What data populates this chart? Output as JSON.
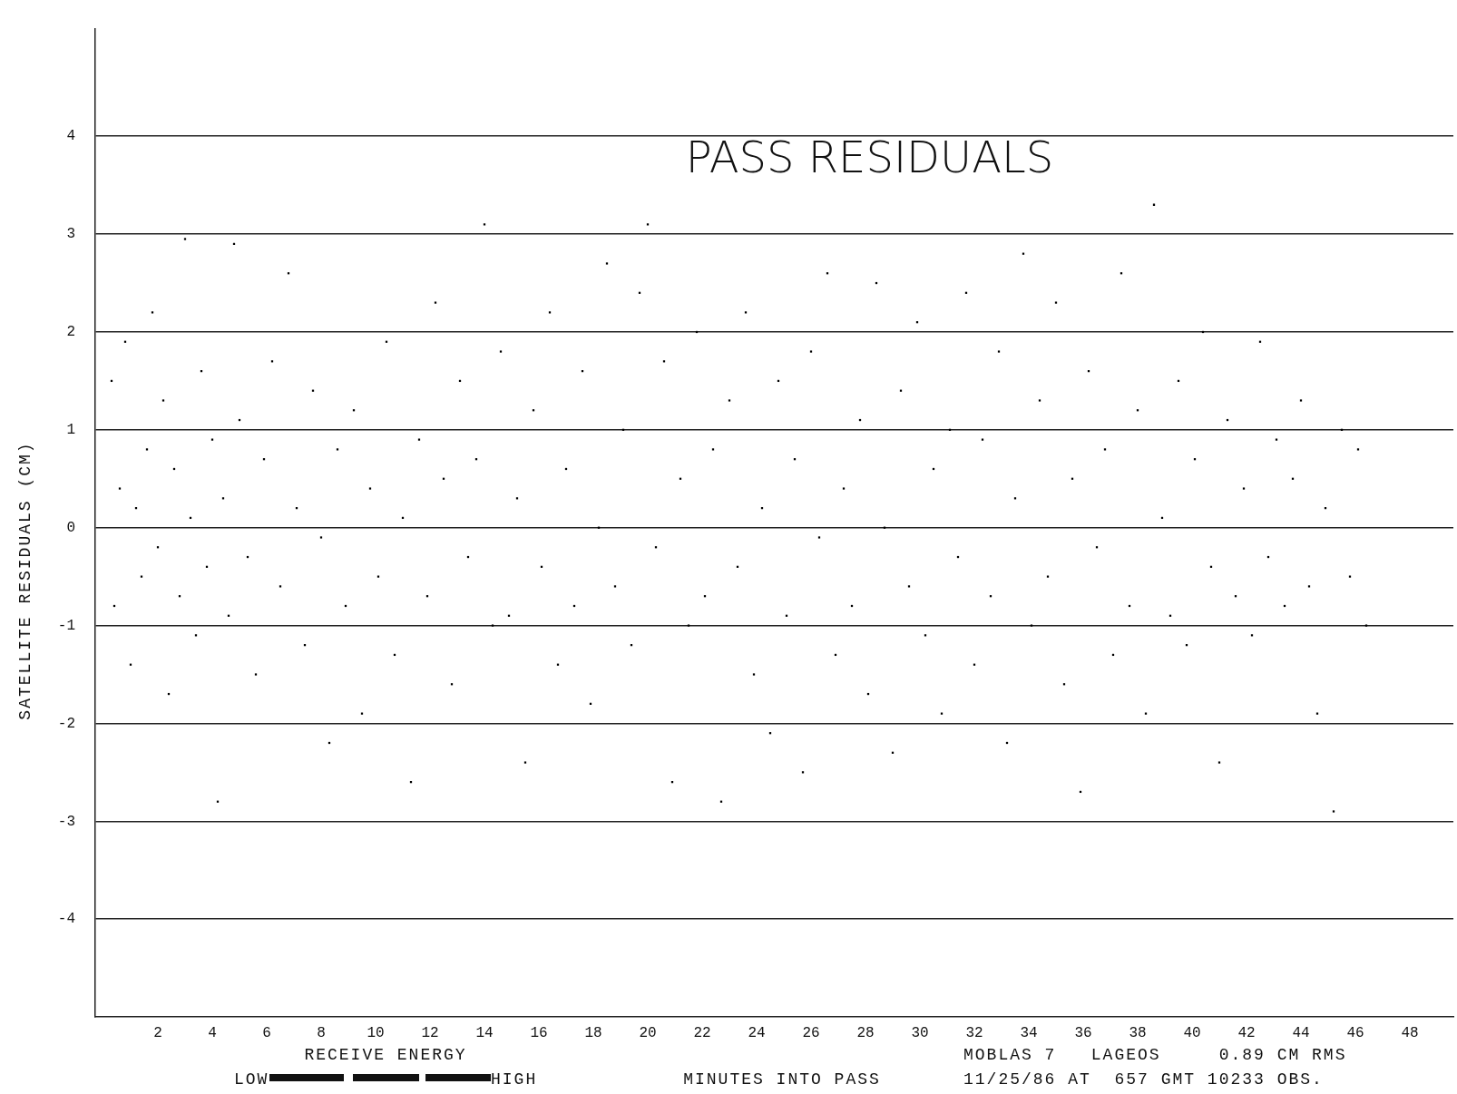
{
  "chart_data": {
    "type": "scatter",
    "title": "PASS RESIDUALS",
    "xlabel": "MINUTES INTO PASS",
    "ylabel": "SATELLITE RESIDUALS (CM)",
    "annotations": [
      "RECEIVE ENERGY",
      "LOW",
      "HIGH",
      "MOBLAS 7   LAGEOS     0.89 CM RMS",
      "11/25/86 AT  657 GMT 10233 OBS."
    ],
    "xlim": [
      -0.3,
      49.6
    ],
    "ylim": [
      -5,
      5.1
    ],
    "xticks": [
      2,
      4,
      6,
      8,
      10,
      12,
      14,
      16,
      18,
      20,
      22,
      24,
      26,
      28,
      30,
      32,
      34,
      36,
      38,
      40,
      42,
      44,
      46,
      48
    ],
    "yticks": [
      -4,
      -3,
      -2,
      -1,
      0,
      1,
      2,
      3,
      4
    ],
    "grid": "y",
    "marker": "square",
    "color": "#000000",
    "x": [
      0.3,
      0.4,
      0.6,
      0.8,
      1.0,
      1.2,
      1.4,
      1.6,
      1.8,
      2.0,
      2.2,
      2.4,
      2.6,
      2.8,
      3.0,
      3.2,
      3.4,
      3.6,
      3.8,
      4.0,
      4.2,
      4.4,
      4.6,
      4.8,
      5.0,
      5.3,
      5.6,
      5.9,
      6.2,
      6.5,
      6.8,
      7.1,
      7.4,
      7.7,
      8.0,
      8.3,
      8.6,
      8.9,
      9.2,
      9.5,
      9.8,
      10.1,
      10.4,
      10.7,
      11.0,
      11.3,
      11.6,
      11.9,
      12.2,
      12.5,
      12.8,
      13.1,
      13.4,
      13.7,
      14.0,
      14.3,
      14.6,
      14.9,
      15.2,
      15.5,
      15.8,
      16.1,
      16.4,
      16.7,
      17.0,
      17.3,
      17.6,
      17.9,
      18.2,
      18.5,
      18.8,
      19.1,
      19.4,
      19.7,
      20.0,
      20.3,
      20.6,
      20.9,
      21.2,
      21.5,
      21.8,
      22.1,
      22.4,
      22.7,
      23.0,
      23.3,
      23.6,
      23.9,
      24.2,
      24.5,
      24.8,
      25.1,
      25.4,
      25.7,
      26.0,
      26.3,
      26.6,
      26.9,
      27.2,
      27.5,
      27.8,
      28.1,
      28.4,
      28.7,
      29.0,
      29.3,
      29.6,
      29.9,
      30.2,
      30.5,
      30.8,
      31.1,
      31.4,
      31.7,
      32.0,
      32.3,
      32.6,
      32.9,
      33.2,
      33.5,
      33.8,
      34.1,
      34.4,
      34.7,
      35.0,
      35.3,
      35.6,
      35.9,
      36.2,
      36.5,
      36.8,
      37.1,
      37.4,
      37.7,
      38.0,
      38.3,
      38.6,
      38.9,
      39.2,
      39.5,
      39.8,
      40.1,
      40.4,
      40.7,
      41.0,
      41.3,
      41.6,
      41.9,
      42.2,
      42.5,
      42.8,
      43.1,
      43.4,
      43.7,
      44.0,
      44.3,
      44.6,
      44.9,
      45.2,
      45.5,
      45.8,
      46.1,
      46.4
    ],
    "values": [
      1.5,
      -0.8,
      0.4,
      1.9,
      -1.4,
      0.2,
      -0.5,
      0.8,
      2.2,
      -0.2,
      1.3,
      -1.7,
      0.6,
      -0.7,
      2.95,
      0.1,
      -1.1,
      1.6,
      -0.4,
      0.9,
      -2.8,
      0.3,
      -0.9,
      2.9,
      1.1,
      -0.3,
      -1.5,
      0.7,
      1.7,
      -0.6,
      2.6,
      0.2,
      -1.2,
      1.4,
      -0.1,
      -2.2,
      0.8,
      -0.8,
      1.2,
      -1.9,
      0.4,
      -0.5,
      1.9,
      -1.3,
      0.1,
      -2.6,
      0.9,
      -0.7,
      2.3,
      0.5,
      -1.6,
      1.5,
      -0.3,
      0.7,
      3.1,
      -1.0,
      1.8,
      -0.9,
      0.3,
      -2.4,
      1.2,
      -0.4,
      2.2,
      -1.4,
      0.6,
      -0.8,
      1.6,
      -1.8,
      0.0,
      2.7,
      -0.6,
      1.0,
      -1.2,
      2.4,
      3.1,
      -0.2,
      1.7,
      -2.6,
      0.5,
      -1.0,
      2.0,
      -0.7,
      0.8,
      -2.8,
      1.3,
      -0.4,
      2.2,
      -1.5,
      0.2,
      -2.1,
      1.5,
      -0.9,
      0.7,
      -2.5,
      1.8,
      -0.1,
      2.6,
      -1.3,
      0.4,
      -0.8,
      1.1,
      -1.7,
      2.5,
      0.0,
      -2.3,
      1.4,
      -0.6,
      2.1,
      -1.1,
      0.6,
      -1.9,
      1.0,
      -0.3,
      2.4,
      -1.4,
      0.9,
      -0.7,
      1.8,
      -2.2,
      0.3,
      2.8,
      -1.0,
      1.3,
      -0.5,
      2.3,
      -1.6,
      0.5,
      -2.7,
      1.6,
      -0.2,
      0.8,
      -1.3,
      2.6,
      -0.8,
      1.2,
      -1.9,
      3.3,
      0.1,
      -0.9,
      1.5,
      -1.2,
      0.7,
      2.0,
      -0.4,
      -2.4,
      1.1,
      -0.7,
      0.4,
      -1.1,
      1.9,
      -0.3,
      0.9,
      -0.8,
      0.5,
      1.3,
      -0.6,
      -1.9,
      0.2,
      -2.9,
      1.0,
      -0.5,
      0.8,
      -1.0
    ]
  }
}
